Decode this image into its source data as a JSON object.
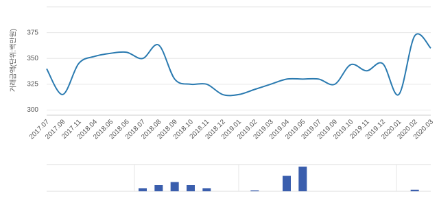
{
  "chart_data": [
    {
      "type": "line",
      "y_label": "거래금액(단위:백만원)",
      "categories": [
        "2017.07",
        "2017.09",
        "2017.11",
        "2018.04",
        "2018.05",
        "2018.06",
        "2018.07",
        "2018.08",
        "2018.09",
        "2018.10",
        "2018.11",
        "2018.12",
        "2019.01",
        "2019.02",
        "2019.03",
        "2019.04",
        "2019.05",
        "2019.07",
        "2019.09",
        "2019.10",
        "2019.11",
        "2019.12",
        "2020.01",
        "2020.02",
        "2020.03"
      ],
      "values": [
        340,
        315,
        345,
        352,
        355,
        356,
        350,
        363,
        330,
        325,
        325,
        315,
        315,
        320,
        325,
        330,
        330,
        330,
        325,
        344,
        338,
        345,
        315,
        372,
        360
      ],
      "color": "#2a7ab0",
      "ylim": [
        295,
        400
      ],
      "yticks": [
        300,
        325,
        350,
        375
      ],
      "grid": true
    },
    {
      "type": "bar",
      "categories": [
        "2017.07",
        "2017.09",
        "2017.11",
        "2018.04",
        "2018.05",
        "2018.06",
        "2018.07",
        "2018.08",
        "2018.09",
        "2018.10",
        "2018.11",
        "2018.12",
        "2019.01",
        "2019.02",
        "2019.03",
        "2019.04",
        "2019.05",
        "2019.07",
        "2019.09",
        "2019.10",
        "2019.11",
        "2019.12",
        "2020.01",
        "2020.02",
        "2020.03"
      ],
      "values": [
        null,
        null,
        null,
        null,
        null,
        null,
        1,
        2,
        3,
        2,
        1,
        null,
        null,
        0.3,
        null,
        5,
        8,
        null,
        null,
        null,
        null,
        null,
        null,
        0.5,
        null
      ],
      "color": "#3a5ead"
    }
  ]
}
